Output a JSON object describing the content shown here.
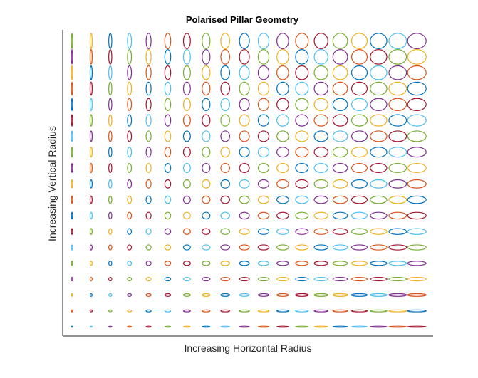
{
  "chart_data": {
    "type": "scatter",
    "title": "Polarised Pillar Geometry",
    "xlabel": "Increasing Horizontal Radius",
    "ylabel": "Increasing Vertical Radius",
    "grid": false,
    "legend": "none",
    "marker": "ellipse",
    "color_order": [
      "#0072BD",
      "#D95319",
      "#EDB120",
      "#7E2F8E",
      "#77AC30",
      "#4DBEEE",
      "#A2142F"
    ],
    "columns": 19,
    "rows": 19,
    "horizontal_radius_range": [
      1,
      19
    ],
    "vertical_radius_range": [
      1,
      19
    ]
  }
}
